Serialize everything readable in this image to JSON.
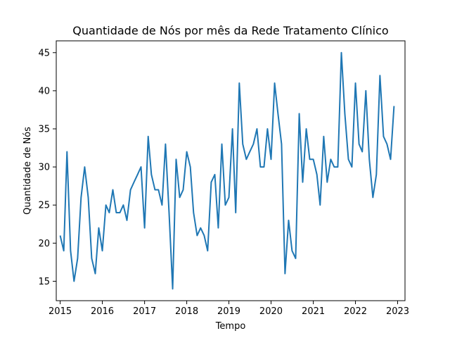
{
  "chart_data": {
    "type": "line",
    "title": "Quantidade de Nós por mês da Rede Tratamento Clínico",
    "xlabel": "Tempo",
    "ylabel": "Quantidade de Nós",
    "xlim": [
      "2014-11-28",
      "2023-03-06"
    ],
    "ylim": [
      12.45,
      46.55
    ],
    "x_ticks": [
      "2015",
      "2016",
      "2017",
      "2018",
      "2019",
      "2020",
      "2021",
      "2022",
      "2023"
    ],
    "y_ticks": [
      "15",
      "20",
      "25",
      "30",
      "35",
      "40",
      "45"
    ],
    "grid": false,
    "line_color": "#1f77b4",
    "series": [
      {
        "x": [
          "2015-01",
          "2015-02",
          "2015-03",
          "2015-04",
          "2015-05",
          "2015-06",
          "2015-07",
          "2015-08",
          "2015-09",
          "2015-10",
          "2015-11",
          "2015-12",
          "2016-01",
          "2016-02",
          "2016-03",
          "2016-04",
          "2016-05",
          "2016-06",
          "2016-07",
          "2016-08",
          "2016-09",
          "2016-10",
          "2016-11",
          "2016-12",
          "2017-01",
          "2017-02",
          "2017-03",
          "2017-04",
          "2017-05",
          "2017-06",
          "2017-07",
          "2017-08",
          "2017-09",
          "2017-10",
          "2017-11",
          "2017-12",
          "2018-01",
          "2018-02",
          "2018-03",
          "2018-04",
          "2018-05",
          "2018-06",
          "2018-07",
          "2018-08",
          "2018-09",
          "2018-10",
          "2018-11",
          "2018-12",
          "2019-01",
          "2019-02",
          "2019-03",
          "2019-04",
          "2019-05",
          "2019-06",
          "2019-07",
          "2019-08",
          "2019-09",
          "2019-10",
          "2019-11",
          "2019-12",
          "2020-01",
          "2020-02",
          "2020-03",
          "2020-04",
          "2020-05",
          "2020-06",
          "2020-07",
          "2020-08",
          "2020-09",
          "2020-10",
          "2020-11",
          "2020-12",
          "2021-01",
          "2021-02",
          "2021-03",
          "2021-04",
          "2021-05",
          "2021-06",
          "2021-07",
          "2021-08",
          "2021-09",
          "2021-10",
          "2021-11",
          "2021-12",
          "2022-01",
          "2022-02",
          "2022-03",
          "2022-04",
          "2022-05",
          "2022-06",
          "2022-07",
          "2022-08",
          "2022-09",
          "2022-10",
          "2022-11",
          "2022-12"
        ],
        "values": [
          21,
          19,
          32,
          19,
          15,
          18,
          26,
          30,
          26,
          18,
          16,
          22,
          19,
          25,
          24,
          27,
          24,
          24,
          25,
          23,
          27,
          28,
          29,
          30,
          22,
          34,
          29,
          27,
          27,
          25,
          33,
          24,
          14,
          31,
          26,
          27,
          32,
          30,
          24,
          21,
          22,
          21,
          19,
          28,
          29,
          22,
          33,
          25,
          26,
          35,
          24,
          41,
          33,
          31,
          32,
          33,
          35,
          30,
          30,
          35,
          31,
          41,
          37,
          33,
          16,
          23,
          19,
          18,
          37,
          28,
          35,
          31,
          31,
          29,
          25,
          34,
          28,
          31,
          30,
          30,
          45,
          37,
          31,
          30,
          41,
          33,
          32,
          40,
          31,
          26,
          29,
          42,
          34,
          33,
          31,
          38
        ]
      }
    ]
  }
}
